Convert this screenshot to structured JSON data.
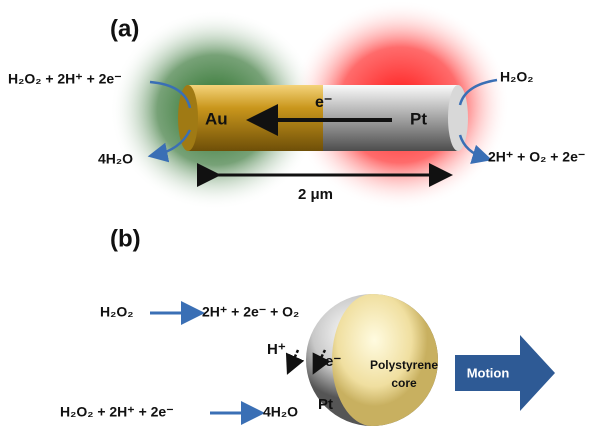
{
  "panel_a": {
    "label": "(a)",
    "left_reaction_in": "H₂O₂ + 2H⁺ + 2e⁻",
    "left_reaction_out": "4H₂O",
    "right_reaction_in": "H₂O₂",
    "right_reaction_out": "2H⁺ + O₂ + 2e⁻",
    "au_label": "Au",
    "pt_label": "Pt",
    "electron_label": "e⁻",
    "length_label": "2 μm"
  },
  "panel_b": {
    "label": "(b)",
    "reaction1_in": "H₂O₂",
    "reaction1_out": "2H⁺ + 2e⁻ + O₂",
    "reaction2_in": "H₂O₂ + 2H⁺ + 2e⁻",
    "reaction2_out": "4H₂O",
    "proton_label": "H⁺",
    "electron_label": "e⁻",
    "pt_label": "Pt",
    "core_label_1": "Polystyrene",
    "core_label_2": "core",
    "motion_label": "Motion"
  }
}
